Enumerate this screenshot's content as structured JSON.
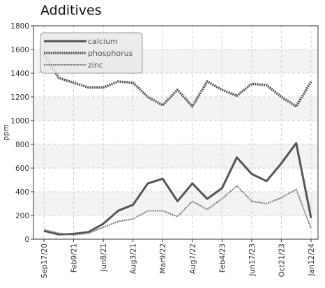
{
  "chart_data": {
    "type": "line",
    "title": "Additives",
    "xlabel": "",
    "ylabel": "ppm",
    "ylim": [
      0,
      1800
    ],
    "yticks": [
      0,
      200,
      400,
      600,
      800,
      1000,
      1200,
      1400,
      1600,
      1800
    ],
    "x_tick_labels": [
      "Sep17/20",
      "Feb9/21",
      "Jun8/21",
      "Aug3/21",
      "Mar9/22",
      "Aug7/22",
      "Feb4/23",
      "Jun17/23",
      "Oct21/23",
      "Jan12/24"
    ],
    "grid": true,
    "legend_position": "top-left",
    "series": [
      {
        "name": "calcium",
        "color": "#555555",
        "style": "solid",
        "values": [
          70,
          40,
          45,
          60,
          130,
          240,
          290,
          470,
          510,
          320,
          470,
          340,
          430,
          690,
          550,
          490,
          640,
          810,
          180
        ]
      },
      {
        "name": "phosphorus",
        "color": "#555555",
        "style": "dotted-thick",
        "values": [
          1560,
          1360,
          1320,
          1280,
          1280,
          1330,
          1320,
          1200,
          1130,
          1260,
          1120,
          1330,
          1260,
          1210,
          1310,
          1300,
          1200,
          1120,
          1330
        ]
      },
      {
        "name": "zinc",
        "color": "#777777",
        "style": "dotted-thin",
        "values": [
          80,
          50,
          35,
          50,
          100,
          150,
          170,
          240,
          240,
          190,
          320,
          250,
          340,
          450,
          320,
          300,
          350,
          420,
          90
        ]
      }
    ]
  }
}
